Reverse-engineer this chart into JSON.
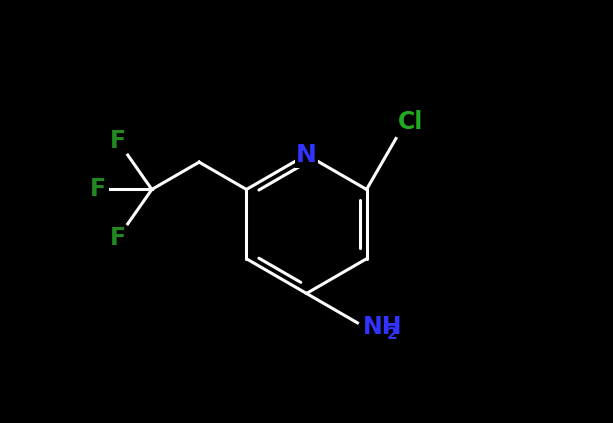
{
  "background_color": "#000000",
  "bond_color": "#ffffff",
  "bond_width": 2.2,
  "atom_colors": {
    "N": "#3333ff",
    "Cl": "#22aa22",
    "F": "#228822",
    "NH2": "#3333ff"
  },
  "font_size_atom": 17,
  "font_size_subscript": 11,
  "figsize": [
    6.13,
    4.23
  ],
  "dpi": 100
}
